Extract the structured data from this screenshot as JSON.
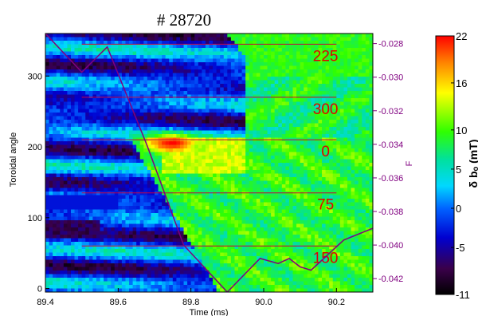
{
  "chart_data": {
    "type": "heatmap",
    "title": "# 28720",
    "xlabel": "Time (ms)",
    "ylabel": "Toroidal angle",
    "y2label": "F",
    "colorbar_label": "δ bₒ (mT)",
    "xlim": [
      89.4,
      90.3
    ],
    "ylim": [
      -5,
      360
    ],
    "y2lim": [
      -0.0428,
      -0.0274
    ],
    "clim": [
      -11,
      22
    ],
    "x_ticks": [
      "89.4",
      "89.6",
      "89.8",
      "90.0",
      "90.2"
    ],
    "x_tick_values": [
      89.4,
      89.6,
      89.8,
      90.0,
      90.2
    ],
    "y_ticks": [
      "0",
      "100",
      "200",
      "300"
    ],
    "y_tick_values": [
      0,
      100,
      200,
      300
    ],
    "y2_ticks": [
      "-0.028",
      "-0.030",
      "-0.032",
      "-0.034",
      "-0.036",
      "-0.038",
      "-0.040",
      "-0.042"
    ],
    "y2_tick_values": [
      -0.028,
      -0.03,
      -0.032,
      -0.034,
      -0.036,
      -0.038,
      -0.04,
      -0.042
    ],
    "colorbar_ticks": [
      "22",
      "16",
      "10",
      "5",
      "0",
      "-5",
      "-11"
    ],
    "colorbar_tick_values": [
      22,
      16,
      10,
      5,
      0,
      -5,
      -11
    ],
    "probe_lines": [
      {
        "label": "225",
        "angle": 345,
        "x_range": [
          89.5,
          90.2
        ]
      },
      {
        "label": "300",
        "angle": 270,
        "x_range": [
          89.5,
          90.2
        ]
      },
      {
        "label": "0",
        "angle": 210,
        "x_range": [
          89.5,
          90.2
        ]
      },
      {
        "label": "75",
        "angle": 135,
        "x_range": [
          89.5,
          90.2
        ]
      },
      {
        "label": "150",
        "angle": 60,
        "x_range": [
          89.5,
          90.2
        ]
      }
    ],
    "F_series": {
      "x": [
        89.4,
        89.5,
        89.57,
        89.68,
        89.78,
        89.9,
        89.99,
        90.04,
        90.07,
        90.1,
        90.13,
        90.22,
        90.3
      ],
      "y": [
        -0.0274,
        -0.0297,
        -0.0282,
        -0.0341,
        -0.04,
        -0.0428,
        -0.0408,
        -0.0411,
        -0.0408,
        -0.0413,
        -0.0415,
        -0.0397,
        -0.039
      ]
    },
    "features": {
      "background_level": 2,
      "diagonal_front": {
        "start": [
          89.63,
          215
        ],
        "end": [
          89.86,
          10
        ]
      },
      "hot_spot": {
        "center": [
          89.75,
          205
        ],
        "peak": 22
      }
    },
    "grid": false
  }
}
